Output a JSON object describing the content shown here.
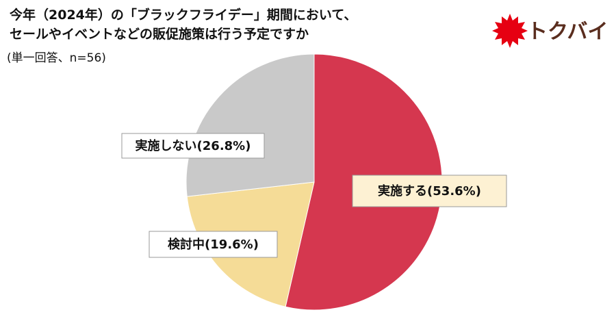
{
  "chart_data": {
    "type": "pie",
    "title": [
      "今年（2024年）の「ブラックフライデー」期間において、",
      "セールやイベントなどの販促施策は行う予定ですか"
    ],
    "subtitle": "(単一回答、n=56)",
    "logo": "トクバイ",
    "categories": [
      "実施する",
      "検討中",
      "実施しない"
    ],
    "values": [
      53.6,
      19.6,
      26.8
    ],
    "value_labels": [
      "(53.6%)",
      "(19.6%)",
      "(26.8%)"
    ],
    "colors": [
      "#d5374f",
      "#f5dc97",
      "#c9c9c9"
    ]
  }
}
